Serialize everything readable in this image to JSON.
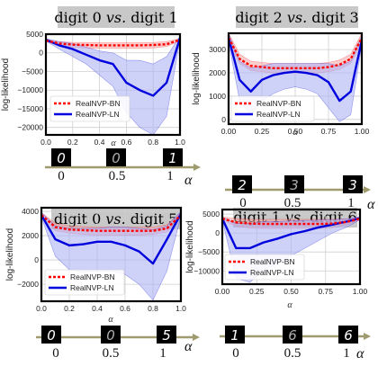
{
  "legend": {
    "bn": "RealNVP-BN",
    "ln": "RealNVP-LN"
  },
  "y_label": "log-likelihood",
  "x_label": "α",
  "strip_labels": [
    "0",
    "0.5",
    "1"
  ],
  "strip_alpha": "α",
  "colors": {
    "bn": "#ff0000",
    "ln": "#0000dd",
    "bn_band": "#f4a6a6",
    "ln_band": "#aeb2f4",
    "title_bg": "#c8c8c8",
    "grid": "#cfcfcf",
    "arrow": "#a09b6e"
  },
  "chart_data": [
    {
      "type": "line",
      "title": "digit 0 vs. digit 1",
      "xlim": [
        0,
        1
      ],
      "ylim": [
        -22000,
        5000
      ],
      "xticks": [
        "0.0",
        "0.2",
        "0.4",
        "0.6",
        "0.8",
        "1.0"
      ],
      "yticks": [
        5000,
        0,
        -5000,
        -10000,
        -15000,
        -20000
      ],
      "ytick_labels": [
        "5000",
        "0",
        "−5000",
        "−10000",
        "−15000",
        "−20000"
      ],
      "x": [
        0,
        0.1,
        0.2,
        0.3,
        0.4,
        0.5,
        0.6,
        0.7,
        0.8,
        0.9,
        1.0
      ],
      "series": [
        {
          "name": "RealNVP-BN",
          "values": [
            3300,
            2500,
            2200,
            2100,
            2000,
            2000,
            2000,
            2000,
            2100,
            2300,
            3500
          ],
          "band_lo": [
            3000,
            2000,
            1500,
            1300,
            1200,
            1200,
            1200,
            1200,
            1300,
            1700,
            3200
          ],
          "band_hi": [
            3600,
            3000,
            2800,
            2800,
            2700,
            2700,
            2700,
            2700,
            2800,
            3000,
            3800
          ]
        },
        {
          "name": "RealNVP-LN",
          "values": [
            3500,
            2000,
            1000,
            -500,
            -2000,
            -3000,
            -8000,
            -10000,
            -11500,
            -8000,
            4000
          ],
          "band_lo": [
            3200,
            1000,
            -1000,
            -3000,
            -6000,
            -9000,
            -16000,
            -20000,
            -22000,
            -17000,
            3500
          ],
          "band_hi": [
            3800,
            3000,
            2500,
            1500,
            500,
            0,
            -2000,
            -2000,
            -3000,
            -1000,
            4500
          ]
        }
      ],
      "strip_digits": [
        "0",
        "0",
        "1"
      ]
    },
    {
      "type": "line",
      "title": "digit 2 vs. digit 3",
      "xlim": [
        0,
        1
      ],
      "ylim": [
        -200,
        3700
      ],
      "xticks": [
        "0.00",
        "0.25",
        "0.50",
        "0.75",
        "1.00"
      ],
      "yticks": [
        0,
        1000,
        2000,
        3000
      ],
      "ytick_labels": [
        "0",
        "1000",
        "2000",
        "3000"
      ],
      "x": [
        0,
        0.083,
        0.167,
        0.25,
        0.333,
        0.417,
        0.5,
        0.583,
        0.667,
        0.75,
        0.833,
        0.917,
        1.0
      ],
      "series": [
        {
          "name": "RealNVP-BN",
          "values": [
            3500,
            2600,
            2300,
            2250,
            2200,
            2200,
            2200,
            2200,
            2200,
            2250,
            2350,
            2600,
            3500
          ],
          "band_lo": [
            3300,
            2400,
            2100,
            2050,
            2000,
            2000,
            2000,
            2000,
            2000,
            2050,
            2150,
            2400,
            3300
          ],
          "band_hi": [
            3700,
            2800,
            2500,
            2450,
            2400,
            2400,
            2400,
            2400,
            2400,
            2450,
            2550,
            2800,
            3700
          ]
        },
        {
          "name": "RealNVP-LN",
          "values": [
            3500,
            1700,
            1200,
            1700,
            1900,
            2000,
            2050,
            2000,
            1900,
            1600,
            800,
            1200,
            3400
          ],
          "band_lo": [
            3300,
            800,
            200,
            800,
            1100,
            1300,
            1400,
            1300,
            1100,
            500,
            -100,
            200,
            3200
          ],
          "band_hi": [
            3700,
            2500,
            2200,
            2300,
            2400,
            2400,
            2400,
            2400,
            2400,
            2400,
            2300,
            2500,
            3600
          ]
        }
      ],
      "strip_digits": [
        "2",
        "3",
        "3"
      ]
    },
    {
      "type": "line",
      "title": "digit 0 vs. digit 5",
      "xlim": [
        0,
        1
      ],
      "ylim": [
        -3400,
        4300
      ],
      "xticks": [
        "0.0",
        "0.2",
        "0.4",
        "0.6",
        "0.8",
        "1.0"
      ],
      "yticks": [
        4000,
        2000,
        0,
        -2000
      ],
      "ytick_labels": [
        "4000",
        "2000",
        "0",
        "−2000"
      ],
      "x": [
        0,
        0.1,
        0.2,
        0.3,
        0.4,
        0.5,
        0.6,
        0.7,
        0.8,
        0.9,
        1.0
      ],
      "series": [
        {
          "name": "RealNVP-BN",
          "values": [
            3700,
            2700,
            2500,
            2450,
            2400,
            2400,
            2400,
            2400,
            2400,
            2600,
            3700
          ],
          "band_lo": [
            3500,
            2400,
            2200,
            2100,
            2050,
            2050,
            2050,
            2050,
            2100,
            2300,
            3500
          ],
          "band_hi": [
            3900,
            3000,
            2800,
            2750,
            2700,
            2700,
            2700,
            2700,
            2700,
            2900,
            3900
          ]
        },
        {
          "name": "RealNVP-LN",
          "values": [
            3700,
            1700,
            1200,
            1300,
            1500,
            1500,
            1200,
            700,
            -300,
            1700,
            3800
          ],
          "band_lo": [
            3500,
            300,
            -800,
            -1000,
            -900,
            -900,
            -1200,
            -2000,
            -3300,
            -900,
            3600
          ],
          "band_hi": [
            3900,
            2800,
            2600,
            2600,
            2600,
            2700,
            2700,
            2600,
            2500,
            2800,
            4000
          ]
        }
      ],
      "strip_digits": [
        "0",
        "0",
        "5"
      ]
    },
    {
      "type": "line",
      "title": "digit 1 vs. digit 6",
      "xlim": [
        0,
        1
      ],
      "ylim": [
        -13500,
        6200
      ],
      "xticks": [
        "0.00",
        "0.25",
        "0.50",
        "0.75",
        "1.00"
      ],
      "yticks": [
        5000,
        0,
        -5000,
        -10000
      ],
      "ytick_labels": [
        "5000",
        "0",
        "−5000",
        "−10000"
      ],
      "x": [
        0,
        0.1,
        0.2,
        0.3,
        0.4,
        0.5,
        0.6,
        0.7,
        0.8,
        0.9,
        1.0
      ],
      "series": [
        {
          "name": "RealNVP-BN",
          "values": [
            3800,
            2800,
            2500,
            2400,
            2400,
            2400,
            2400,
            2400,
            2500,
            2900,
            3800
          ],
          "band_lo": [
            3400,
            1800,
            1300,
            1200,
            1200,
            1200,
            1200,
            1200,
            1400,
            2200,
            3400
          ],
          "band_hi": [
            4200,
            3800,
            3600,
            3600,
            3600,
            3600,
            3600,
            3600,
            3600,
            3700,
            4200
          ]
        },
        {
          "name": "RealNVP-LN",
          "values": [
            3800,
            -4000,
            -4000,
            -2500,
            -1500,
            -300,
            500,
            1500,
            2200,
            3000,
            3900
          ],
          "band_lo": [
            3400,
            -12000,
            -13000,
            -10000,
            -8000,
            -6000,
            -4000,
            -2000,
            0,
            1500,
            3500
          ],
          "band_hi": [
            4200,
            2500,
            2500,
            3000,
            3000,
            3200,
            3300,
            3400,
            3500,
            3700,
            4300
          ]
        }
      ],
      "strip_digits": [
        "1",
        "6",
        "6"
      ]
    }
  ]
}
